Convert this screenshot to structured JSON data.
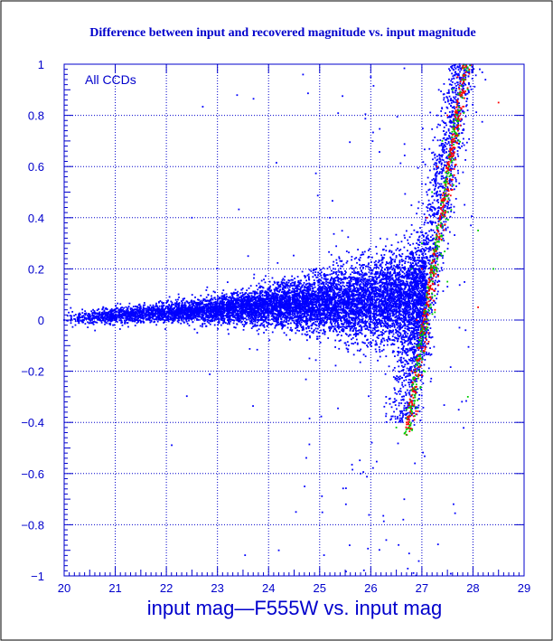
{
  "chart_data": {
    "type": "scatter",
    "title": "Difference between input and recovered magnitude vs. input magnitude",
    "xlabel": "input mag—F555W vs. input mag",
    "ylabel": "",
    "annotation": "All CCDs",
    "xlim": [
      20,
      29
    ],
    "ylim": [
      -1,
      1
    ],
    "x_ticks": [
      "20",
      "21",
      "22",
      "23",
      "24",
      "25",
      "26",
      "27",
      "28",
      "29"
    ],
    "y_ticks": [
      "−1",
      "−0.8",
      "−0.6",
      "−0.4",
      "−0.2",
      "0",
      "0.2",
      "0.4",
      "0.6",
      "0.8",
      "1"
    ],
    "grid": true,
    "colors": {
      "blue": "#0000ff",
      "green": "#00cc00",
      "red": "#ff0000",
      "text": "#0000cc",
      "grid": "#0000cc",
      "background": "#ffffff",
      "border": "#000000"
    },
    "series": [
      {
        "color": "#0000ff",
        "points": [
          [
            20.0,
            0.0
          ],
          [
            20.5,
            0.01
          ],
          [
            21.0,
            0.0
          ],
          [
            21.5,
            0.01
          ],
          [
            22.0,
            0.01
          ],
          [
            22.5,
            0.02
          ],
          [
            23.0,
            0.02
          ],
          [
            23.5,
            0.03
          ],
          [
            24.0,
            0.03
          ],
          [
            24.5,
            0.04
          ],
          [
            25.0,
            0.05
          ],
          [
            25.5,
            0.06
          ],
          [
            26.0,
            0.06
          ],
          [
            26.5,
            0.05
          ],
          [
            26.8,
            0.1
          ],
          [
            25.2,
            0.4
          ],
          [
            26.3,
            -0.3
          ],
          [
            24.8,
            -0.15
          ],
          [
            23.6,
            0.25
          ],
          [
            27.3,
            0.8
          ],
          [
            26.0,
            0.95
          ],
          [
            22.5,
            0.4
          ],
          [
            25.8,
            -0.6
          ],
          [
            24.2,
            -0.9
          ]
        ]
      },
      {
        "color": "#00cc00",
        "points": [
          [
            26.8,
            0.2
          ],
          [
            27.0,
            0.3
          ],
          [
            27.2,
            0.5
          ],
          [
            27.4,
            0.7
          ],
          [
            27.6,
            0.9
          ],
          [
            26.9,
            -0.1
          ],
          [
            26.7,
            -0.35
          ],
          [
            27.5,
            0.15
          ],
          [
            28.1,
            0.35
          ],
          [
            27.9,
            -0.3
          ],
          [
            28.4,
            0.2
          ],
          [
            26.5,
            -0.42
          ]
        ]
      },
      {
        "color": "#ff0000",
        "points": [
          [
            26.9,
            0.0
          ],
          [
            27.0,
            0.2
          ],
          [
            27.1,
            0.4
          ],
          [
            27.3,
            0.6
          ],
          [
            27.5,
            0.8
          ],
          [
            27.7,
            0.95
          ],
          [
            26.8,
            -0.2
          ],
          [
            26.7,
            -0.4
          ],
          [
            28.5,
            0.85
          ],
          [
            28.1,
            0.05
          ]
        ]
      }
    ]
  }
}
